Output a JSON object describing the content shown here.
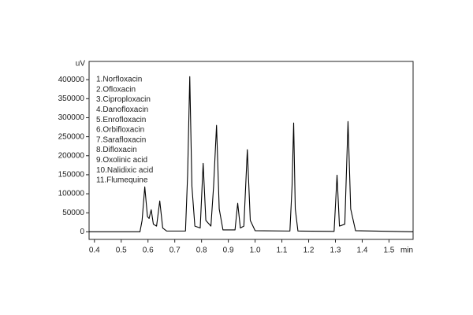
{
  "chart_data": {
    "type": "line",
    "x_label": "min",
    "y_label": "uV",
    "color": "#000000",
    "xlim": [
      0.38,
      1.59
    ],
    "ylim": [
      -20000,
      448000
    ],
    "xticks": [
      0.4,
      0.5,
      0.6,
      0.7,
      0.8,
      0.9,
      {
        "value": 1,
        "label": "1.0"
      },
      1.1,
      1.2,
      1.3,
      1.4,
      1.5
    ],
    "yticks": [
      0,
      50000,
      100000,
      150000,
      200000,
      250000,
      300000,
      350000,
      400000
    ],
    "annotations": [
      "1.Norfloxacin",
      "2.Ofloxacin",
      "3.Ciproploxacin",
      "4.Danofloxacin",
      "5.Enrofloxacin",
      "6.Orbifloxacin",
      "7.Sarafloxacin",
      "8.Difloxacin",
      "9.Oxolinic acid",
      "10.Nalidixic acid",
      "11.Flumequine"
    ],
    "x": [
      0.38,
      0.57,
      0.578,
      0.588,
      0.598,
      0.604,
      0.612,
      0.62,
      0.632,
      0.644,
      0.655,
      0.67,
      0.74,
      0.748,
      0.756,
      0.764,
      0.775,
      0.795,
      0.806,
      0.816,
      0.835,
      0.845,
      0.856,
      0.866,
      0.88,
      0.925,
      0.935,
      0.945,
      0.958,
      0.971,
      0.982,
      1.0,
      1.13,
      1.138,
      1.144,
      1.15,
      1.16,
      1.295,
      1.306,
      1.315,
      1.335,
      1.347,
      1.357,
      1.375,
      1.59
    ],
    "values": [
      0,
      0,
      30000,
      118000,
      40000,
      35000,
      58000,
      20000,
      15000,
      81000,
      10000,
      2000,
      2000,
      150000,
      408000,
      120000,
      15000,
      10000,
      180000,
      30000,
      15000,
      120000,
      280000,
      60000,
      5000,
      5000,
      75000,
      10000,
      15000,
      216000,
      30000,
      3000,
      2000,
      120000,
      286000,
      60000,
      2000,
      1000,
      149000,
      15000,
      20000,
      290000,
      60000,
      3000,
      0
    ]
  }
}
